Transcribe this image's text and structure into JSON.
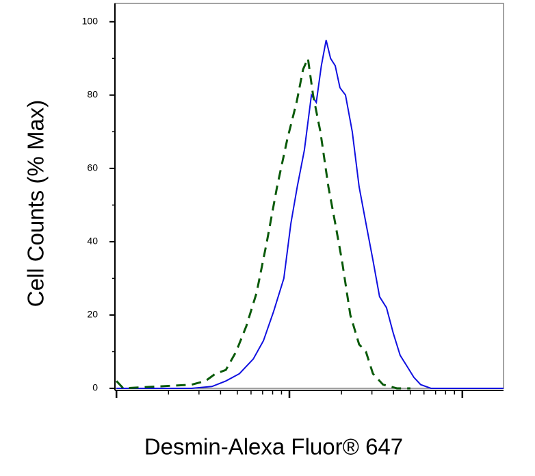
{
  "chart_data": {
    "type": "line",
    "xlabel": "Desmin-Alexa Fluor® 647",
    "ylabel": "Cell Counts (% Max)",
    "xscale": "log",
    "xlim": [
      0.98,
      173
    ],
    "xticks": [
      1,
      10,
      100
    ],
    "ylim": [
      0,
      105
    ],
    "yticks": [
      0,
      20,
      40,
      60,
      80,
      100
    ],
    "series": [
      {
        "color": "#1010e0",
        "dashed": false,
        "x": [
          1,
          2.72,
          3.57,
          4.29,
          5.14,
          6.18,
          7.08,
          8.11,
          9.29,
          10.2,
          11.1,
          12.2,
          13.4,
          14.3,
          15.3,
          16.3,
          17.3,
          18.4,
          19.6,
          21.1,
          23.1,
          25.3,
          27.7,
          30.4,
          33.2,
          36.4,
          39.9,
          43.7,
          47.9,
          52.4,
          57.4,
          65.8,
          173
        ],
        "values": [
          0,
          0,
          0.5,
          2,
          4,
          8,
          13,
          21,
          30,
          45,
          55,
          65,
          80,
          78,
          88,
          95,
          90,
          88,
          82,
          80,
          70,
          55,
          45,
          35,
          25,
          22,
          15,
          9,
          6,
          3,
          1,
          0,
          0
        ]
      },
      {
        "color": "#0a5a0a",
        "dashed": true,
        "x": [
          1,
          1.095,
          2.72,
          3.27,
          3.74,
          4.29,
          4.92,
          5.64,
          6.46,
          7.41,
          8.49,
          9.73,
          11.0,
          12.0,
          12.8,
          13.7,
          15.1,
          16.8,
          18.4,
          20.1,
          22.5,
          25.3,
          27.7,
          30.4,
          34.8,
          41.8,
          50.1
        ],
        "values": [
          2,
          0,
          1,
          2,
          4,
          5,
          10,
          17,
          26,
          40,
          55,
          68,
          78,
          87,
          90,
          80,
          70,
          55,
          45,
          35,
          20,
          12,
          10,
          4,
          1,
          0,
          0
        ]
      }
    ]
  }
}
